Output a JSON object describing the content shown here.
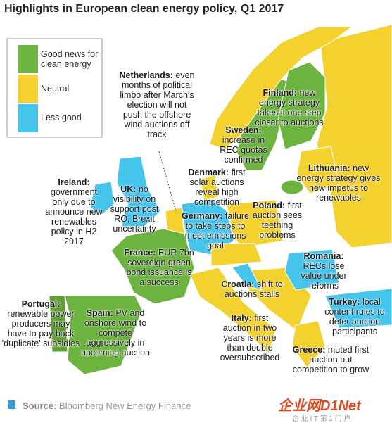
{
  "title": "Highlights in European clean energy policy, Q1 2017",
  "legend": [
    "Good news for clean energy",
    "Neutral",
    "Less good"
  ],
  "annotations": [
    {
      "country": "Netherlands:",
      "text": "even months of political limbo after March's election will not push the offshore wind auctions off track"
    },
    {
      "country": "Finland:",
      "text": "new energy strategy takes it one step closer to auctions"
    },
    {
      "country": "Sweden:",
      "text": "increase in REC quotas confirmed"
    },
    {
      "country": "Denmark:",
      "text": "first solar auctions reveal high competition"
    },
    {
      "country": "Lithuania:",
      "text": "new energy strategy gives new impetus to renewables"
    },
    {
      "country": "Ireland:",
      "text": "government only due to announce new renewables policy in H2 2017"
    },
    {
      "country": "UK:",
      "text": "no visibility on support post RO, Brexit uncertainty"
    },
    {
      "country": "Poland:",
      "text": "first auction sees teething problems"
    },
    {
      "country": "Germany:",
      "text": "failure to take steps to meet emissions goal"
    },
    {
      "country": "France:",
      "text": "EUR 7bn sovereign green bond issuance is a success"
    },
    {
      "country": "Romania:",
      "text": "RECs lose value under reforms"
    },
    {
      "country": "Croatia:",
      "text": "shift to auctions stalls"
    },
    {
      "country": "Turkey:",
      "text": "local content rules to deter auction participants"
    },
    {
      "country": "Portugal:",
      "text": "renewable power producers may have to pay back 'duplicate' subsidies"
    },
    {
      "country": "Spain:",
      "text": "PV and onshore wind to compete aggressively in upcoming auction"
    },
    {
      "country": "Italy:",
      "text": "first auction in two years is more than double oversubscribed"
    },
    {
      "country": "Greece:",
      "text": "muted first auction but competition to grow"
    }
  ],
  "source": {
    "label": "Source:",
    "text": "Bloomberg New Energy Finance"
  },
  "watermark": {
    "logo": "企业网D1Net",
    "tagline": "企 业 I T 第 1 门 户"
  }
}
